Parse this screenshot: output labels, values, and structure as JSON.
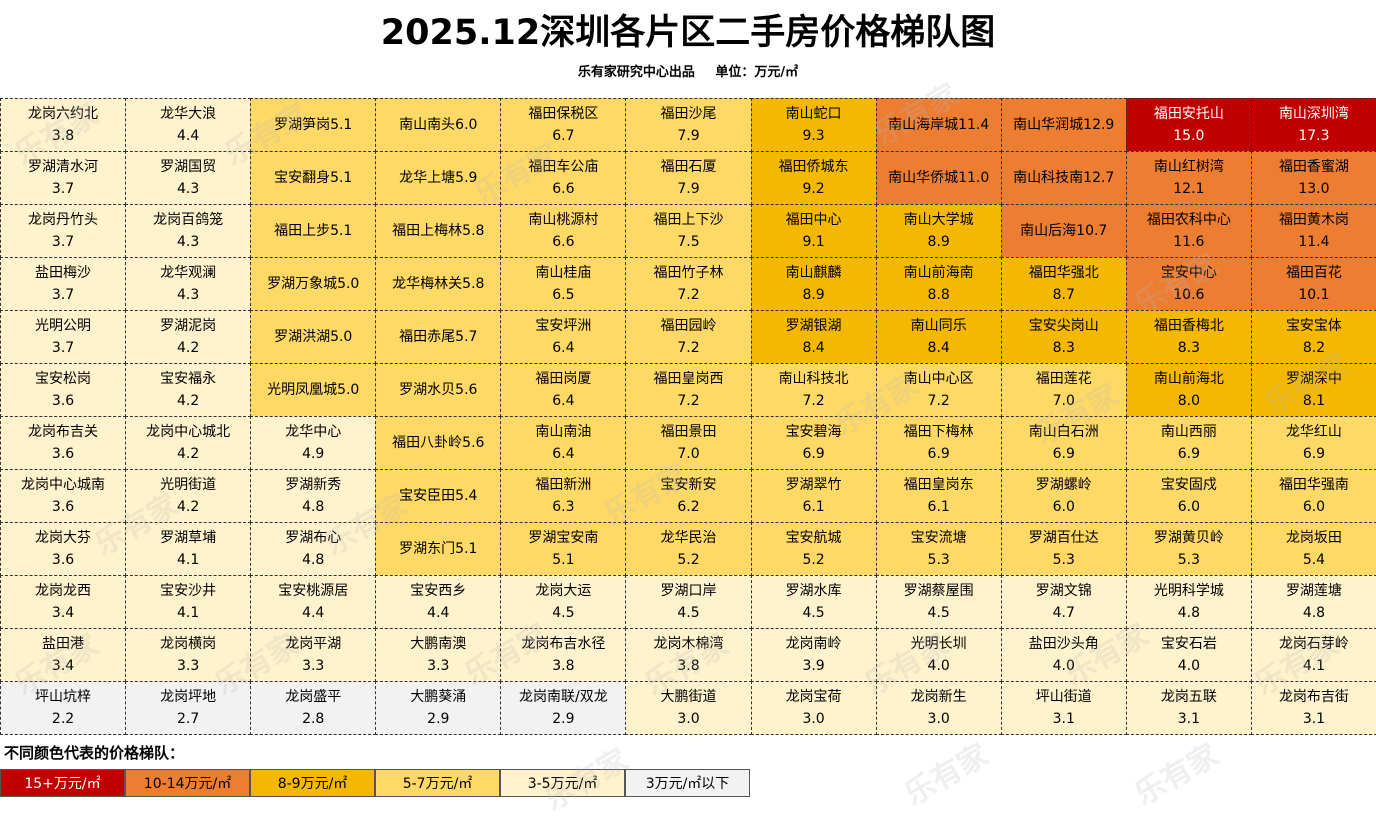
{
  "title": "2025.12深圳各片区二手房价格梯队图",
  "subtitle": {
    "producer": "乐有家研究中心出品",
    "unit": "单位：万元/㎡"
  },
  "watermark": "乐有家",
  "legend": {
    "title": "不同颜色代表的价格梯队：",
    "items": [
      {
        "label": "15+万元/㎡",
        "color": "#c00000"
      },
      {
        "label": "10-14万元/㎡",
        "color": "#ed7d31"
      },
      {
        "label": "8-9万元/㎡",
        "color": "#f4b800"
      },
      {
        "label": "5-7万元/㎡",
        "color": "#ffd966"
      },
      {
        "label": "3-5万元/㎡",
        "color": "#fff2cc"
      },
      {
        "label": "3万元/㎡以下",
        "color": "#f2f2f2"
      }
    ]
  },
  "chart_data": {
    "type": "table",
    "columns": [
      [
        {
          "name": "龙岗六约北",
          "value": 3.8
        },
        {
          "name": "罗湖清水河",
          "value": 3.7
        },
        {
          "name": "龙岗丹竹头",
          "value": 3.7
        },
        {
          "name": "盐田梅沙",
          "value": 3.7
        },
        {
          "name": "光明公明",
          "value": 3.7
        },
        {
          "name": "宝安松岗",
          "value": 3.6
        },
        {
          "name": "龙岗布吉关",
          "value": 3.6
        },
        {
          "name": "龙岗中心城南",
          "value": 3.6
        },
        {
          "name": "龙岗大芬",
          "value": 3.6
        },
        {
          "name": "龙岗龙西",
          "value": 3.4
        },
        {
          "name": "盐田港",
          "value": 3.4
        },
        {
          "name": "坪山坑梓",
          "value": 2.2
        }
      ],
      [
        {
          "name": "龙华大浪",
          "value": 4.4
        },
        {
          "name": "罗湖国贸",
          "value": 4.3
        },
        {
          "name": "龙岗百鸽笼",
          "value": 4.3
        },
        {
          "name": "龙华观澜",
          "value": 4.3
        },
        {
          "name": "罗湖泥岗",
          "value": 4.2
        },
        {
          "name": "宝安福永",
          "value": 4.2
        },
        {
          "name": "龙岗中心城北",
          "value": 4.2
        },
        {
          "name": "光明街道",
          "value": 4.2
        },
        {
          "name": "罗湖草埔",
          "value": 4.1
        },
        {
          "name": "宝安沙井",
          "value": 4.1
        },
        {
          "name": "龙岗横岗",
          "value": 3.3
        },
        {
          "name": "龙岗坪地",
          "value": 2.7
        }
      ],
      [
        {
          "name": "罗湖笋岗",
          "value": 5.1
        },
        {
          "name": "宝安翻身",
          "value": 5.1
        },
        {
          "name": "福田上步",
          "value": 5.1
        },
        {
          "name": "罗湖万象城",
          "value": 5.0
        },
        {
          "name": "罗湖洪湖",
          "value": 5.0
        },
        {
          "name": "光明凤凰城",
          "value": 5.0
        },
        {
          "name": "龙华中心",
          "value": 4.9
        },
        {
          "name": "罗湖新秀",
          "value": 4.8
        },
        {
          "name": "罗湖布心",
          "value": 4.8
        },
        {
          "name": "宝安桃源居",
          "value": 4.4
        },
        {
          "name": "龙岗平湖",
          "value": 3.3
        },
        {
          "name": "龙岗盛平",
          "value": 2.8
        }
      ],
      [
        {
          "name": "南山南头",
          "value": 6.0
        },
        {
          "name": "龙华上塘",
          "value": 5.9
        },
        {
          "name": "福田上梅林",
          "value": 5.8
        },
        {
          "name": "龙华梅林关",
          "value": 5.8
        },
        {
          "name": "福田赤尾",
          "value": 5.7
        },
        {
          "name": "罗湖水贝",
          "value": 5.6
        },
        {
          "name": "福田八卦岭",
          "value": 5.6
        },
        {
          "name": "宝安臣田",
          "value": 5.4
        },
        {
          "name": "罗湖东门",
          "value": 5.1
        },
        {
          "name": "宝安西乡",
          "value": 4.4
        },
        {
          "name": "大鹏南澳",
          "value": 3.3
        },
        {
          "name": "大鹏葵涌",
          "value": 2.9
        }
      ],
      [
        {
          "name": "福田保税区",
          "value": 6.7
        },
        {
          "name": "福田车公庙",
          "value": 6.6
        },
        {
          "name": "南山桃源村",
          "value": 6.6
        },
        {
          "name": "南山桂庙",
          "value": 6.5
        },
        {
          "name": "宝安坪洲",
          "value": 6.4
        },
        {
          "name": "福田岗厦",
          "value": 6.4
        },
        {
          "name": "南山南油",
          "value": 6.4
        },
        {
          "name": "福田新洲",
          "value": 6.3
        },
        {
          "name": "罗湖宝安南",
          "value": 5.1
        },
        {
          "name": "龙岗大运",
          "value": 4.5
        },
        {
          "name": "龙岗布吉水径",
          "value": 3.8
        },
        {
          "name": "龙岗南联/双龙",
          "value": 2.9
        }
      ],
      [
        {
          "name": "福田沙尾",
          "value": 7.9
        },
        {
          "name": "福田石厦",
          "value": 7.9
        },
        {
          "name": "福田上下沙",
          "value": 7.5
        },
        {
          "name": "福田竹子林",
          "value": 7.2
        },
        {
          "name": "福田园岭",
          "value": 7.2
        },
        {
          "name": "福田皇岗西",
          "value": 7.2
        },
        {
          "name": "福田景田",
          "value": 7.0
        },
        {
          "name": "宝安新安",
          "value": 6.2
        },
        {
          "name": "龙华民治",
          "value": 5.2
        },
        {
          "name": "罗湖口岸",
          "value": 4.5
        },
        {
          "name": "龙岗木棉湾",
          "value": 3.8
        },
        {
          "name": "大鹏街道",
          "value": 3.0
        }
      ],
      [
        {
          "name": "南山蛇口",
          "value": 9.3
        },
        {
          "name": "福田侨城东",
          "value": 9.2
        },
        {
          "name": "福田中心",
          "value": 9.1
        },
        {
          "name": "南山麒麟",
          "value": 8.9
        },
        {
          "name": "罗湖银湖",
          "value": 8.4
        },
        {
          "name": "南山科技北",
          "value": 7.2
        },
        {
          "name": "宝安碧海",
          "value": 6.9
        },
        {
          "name": "罗湖翠竹",
          "value": 6.1
        },
        {
          "name": "宝安航城",
          "value": 5.2
        },
        {
          "name": "罗湖水库",
          "value": 4.5
        },
        {
          "name": "龙岗南岭",
          "value": 3.9
        },
        {
          "name": "龙岗宝荷",
          "value": 3.0
        }
      ],
      [
        {
          "name": "南山海岸城",
          "value": 11.4
        },
        {
          "name": "南山华侨城",
          "value": 11.0
        },
        {
          "name": "南山大学城",
          "value": 8.9
        },
        {
          "name": "南山前海南",
          "value": 8.8
        },
        {
          "name": "南山同乐",
          "value": 8.4
        },
        {
          "name": "南山中心区",
          "value": 7.2
        },
        {
          "name": "福田下梅林",
          "value": 6.9
        },
        {
          "name": "福田皇岗东",
          "value": 6.1
        },
        {
          "name": "宝安流塘",
          "value": 5.3
        },
        {
          "name": "罗湖蔡屋围",
          "value": 4.5
        },
        {
          "name": "光明长圳",
          "value": 4.0
        },
        {
          "name": "龙岗新生",
          "value": 3.0
        }
      ],
      [
        {
          "name": "南山华润城",
          "value": 12.9
        },
        {
          "name": "南山科技南",
          "value": 12.7
        },
        {
          "name": "南山后海",
          "value": 10.7
        },
        {
          "name": "福田华强北",
          "value": 8.7
        },
        {
          "name": "宝安尖岗山",
          "value": 8.3
        },
        {
          "name": "福田莲花",
          "value": 7.0
        },
        {
          "name": "南山白石洲",
          "value": 6.9
        },
        {
          "name": "罗湖螺岭",
          "value": 6.0
        },
        {
          "name": "罗湖百仕达",
          "value": 5.3
        },
        {
          "name": "罗湖文锦",
          "value": 4.7
        },
        {
          "name": "盐田沙头角",
          "value": 4.0
        },
        {
          "name": "坪山街道",
          "value": 3.1
        }
      ],
      [
        {
          "name": "福田安托山",
          "value": 15.0
        },
        {
          "name": "南山红树湾",
          "value": 12.1
        },
        {
          "name": "福田农科中心",
          "value": 11.6
        },
        {
          "name": "宝安中心",
          "value": 10.6
        },
        {
          "name": "福田香梅北",
          "value": 8.3
        },
        {
          "name": "南山前海北",
          "value": 8.0
        },
        {
          "name": "南山西丽",
          "value": 6.9
        },
        {
          "name": "宝安固戍",
          "value": 6.0
        },
        {
          "name": "罗湖黄贝岭",
          "value": 5.3
        },
        {
          "name": "光明科学城",
          "value": 4.8
        },
        {
          "name": "宝安石岩",
          "value": 4.0
        },
        {
          "name": "龙岗五联",
          "value": 3.1
        }
      ],
      [
        {
          "name": "南山深圳湾",
          "value": 17.3
        },
        {
          "name": "福田香蜜湖",
          "value": 13.0
        },
        {
          "name": "福田黄木岗",
          "value": 11.4
        },
        {
          "name": "福田百花",
          "value": 10.1
        },
        {
          "name": "宝安宝体",
          "value": 8.2
        },
        {
          "name": "罗湖深中",
          "value": 8.1
        },
        {
          "name": "龙华红山",
          "value": 6.9
        },
        {
          "name": "福田华强南",
          "value": 6.0
        },
        {
          "name": "龙岗坂田",
          "value": 5.4
        },
        {
          "name": "罗湖莲塘",
          "value": 4.8
        },
        {
          "name": "龙岗石芽岭",
          "value": 4.1
        },
        {
          "name": "龙岗布吉街",
          "value": 3.1
        }
      ]
    ]
  }
}
